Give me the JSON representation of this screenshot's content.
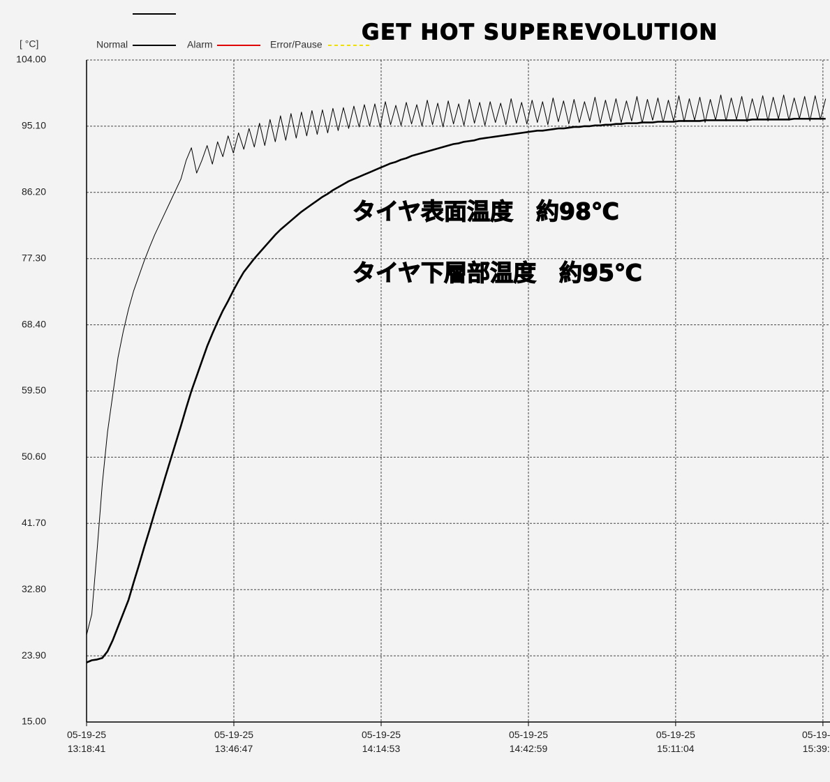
{
  "chart_data": {
    "type": "line",
    "title": "GET HOT SUPEREVOLUTION",
    "y_label": "[ °C]",
    "legend": [
      {
        "name": "Normal",
        "color": "#000000",
        "dash": false
      },
      {
        "name": "Alarm",
        "color": "#e00000",
        "dash": false
      },
      {
        "name": "Error/Pause",
        "color": "#f0e000",
        "dash": true
      }
    ],
    "annotations": [
      "タイヤ表面温度　約98℃",
      "タイヤ下層部温度　約95℃"
    ],
    "grid": true,
    "ylim": [
      15,
      104
    ],
    "yticks": [
      {
        "value": 15,
        "label": "15.00"
      },
      {
        "value": 23.9,
        "label": "23.90"
      },
      {
        "value": 32.8,
        "label": "32.80"
      },
      {
        "value": 41.7,
        "label": "41.70"
      },
      {
        "value": 50.6,
        "label": "50.60"
      },
      {
        "value": 59.5,
        "label": "59.50"
      },
      {
        "value": 68.4,
        "label": "68.40"
      },
      {
        "value": 77.3,
        "label": "77.30"
      },
      {
        "value": 86.2,
        "label": "86.20"
      },
      {
        "value": 95.1,
        "label": "95.10"
      },
      {
        "value": 104,
        "label": "104.00"
      }
    ],
    "xlim": [
      "2025-05-19T13:18:41",
      "2025-05-19T15:40:31"
    ],
    "xticks": [
      {
        "value": "2025-05-19T13:18:41",
        "label": "05-19-25\n13:18:41"
      },
      {
        "value": "2025-05-19T13:46:47",
        "label": "05-19-25\n13:46:47"
      },
      {
        "value": "2025-05-19T14:14:53",
        "label": "05-19-25\n14:14:53"
      },
      {
        "value": "2025-05-19T14:42:59",
        "label": "05-19-25\n14:42:59"
      },
      {
        "value": "2025-05-19T15:11:04",
        "label": "05-19-25\n15:11:04"
      },
      {
        "value": "2025-05-19T15:39:10",
        "label": "05-19-\n15:39:"
      }
    ],
    "x": [
      "2025-05-19T13:18:41",
      "2025-05-19T13:19:41",
      "2025-05-19T13:20:41",
      "2025-05-19T13:21:41",
      "2025-05-19T13:22:41",
      "2025-05-19T13:23:41",
      "2025-05-19T13:24:41",
      "2025-05-19T13:25:41",
      "2025-05-19T13:26:41",
      "2025-05-19T13:27:41",
      "2025-05-19T13:28:41",
      "2025-05-19T13:29:41",
      "2025-05-19T13:30:41",
      "2025-05-19T13:31:41",
      "2025-05-19T13:32:41",
      "2025-05-19T13:33:41",
      "2025-05-19T13:34:41",
      "2025-05-19T13:35:41",
      "2025-05-19T13:36:41",
      "2025-05-19T13:37:41",
      "2025-05-19T13:38:41",
      "2025-05-19T13:39:41",
      "2025-05-19T13:40:41",
      "2025-05-19T13:41:41",
      "2025-05-19T13:42:41",
      "2025-05-19T13:43:41",
      "2025-05-19T13:44:41",
      "2025-05-19T13:45:41",
      "2025-05-19T13:46:41",
      "2025-05-19T13:47:41",
      "2025-05-19T13:48:41",
      "2025-05-19T13:49:41",
      "2025-05-19T13:50:41",
      "2025-05-19T13:51:41",
      "2025-05-19T13:52:41",
      "2025-05-19T13:53:41",
      "2025-05-19T13:54:41",
      "2025-05-19T13:55:41",
      "2025-05-19T13:56:41",
      "2025-05-19T13:57:41",
      "2025-05-19T13:58:41",
      "2025-05-19T13:59:41",
      "2025-05-19T14:00:41",
      "2025-05-19T14:01:41",
      "2025-05-19T14:02:41",
      "2025-05-19T14:03:41",
      "2025-05-19T14:04:41",
      "2025-05-19T14:05:41",
      "2025-05-19T14:06:41",
      "2025-05-19T14:07:41",
      "2025-05-19T14:08:41",
      "2025-05-19T14:09:41",
      "2025-05-19T14:10:41",
      "2025-05-19T14:11:41",
      "2025-05-19T14:12:41",
      "2025-05-19T14:13:41",
      "2025-05-19T14:14:41",
      "2025-05-19T14:15:41",
      "2025-05-19T14:16:41",
      "2025-05-19T14:17:41",
      "2025-05-19T14:18:41",
      "2025-05-19T14:19:41",
      "2025-05-19T14:20:41",
      "2025-05-19T14:21:41",
      "2025-05-19T14:22:41",
      "2025-05-19T14:23:41",
      "2025-05-19T14:24:41",
      "2025-05-19T14:25:41",
      "2025-05-19T14:26:41",
      "2025-05-19T14:27:41",
      "2025-05-19T14:28:41",
      "2025-05-19T14:29:41",
      "2025-05-19T14:30:41",
      "2025-05-19T14:31:41",
      "2025-05-19T14:32:41",
      "2025-05-19T14:33:41",
      "2025-05-19T14:34:41",
      "2025-05-19T14:35:41",
      "2025-05-19T14:36:41",
      "2025-05-19T14:37:41",
      "2025-05-19T14:38:41",
      "2025-05-19T14:39:41",
      "2025-05-19T14:40:41",
      "2025-05-19T14:41:41",
      "2025-05-19T14:42:41",
      "2025-05-19T14:43:41",
      "2025-05-19T14:44:41",
      "2025-05-19T14:45:41",
      "2025-05-19T14:46:41",
      "2025-05-19T14:47:41",
      "2025-05-19T14:48:41",
      "2025-05-19T14:49:41",
      "2025-05-19T14:50:41",
      "2025-05-19T14:51:41",
      "2025-05-19T14:52:41",
      "2025-05-19T14:53:41",
      "2025-05-19T14:54:41",
      "2025-05-19T14:55:41",
      "2025-05-19T14:56:41",
      "2025-05-19T14:57:41",
      "2025-05-19T14:58:41",
      "2025-05-19T14:59:41",
      "2025-05-19T15:00:41",
      "2025-05-19T15:01:41",
      "2025-05-19T15:02:41",
      "2025-05-19T15:03:41",
      "2025-05-19T15:04:41",
      "2025-05-19T15:05:41",
      "2025-05-19T15:06:41",
      "2025-05-19T15:07:41",
      "2025-05-19T15:08:41",
      "2025-05-19T15:09:41",
      "2025-05-19T15:10:41",
      "2025-05-19T15:11:41",
      "2025-05-19T15:12:41",
      "2025-05-19T15:13:41",
      "2025-05-19T15:14:41",
      "2025-05-19T15:15:41",
      "2025-05-19T15:16:41",
      "2025-05-19T15:17:41",
      "2025-05-19T15:18:41",
      "2025-05-19T15:19:41",
      "2025-05-19T15:20:41",
      "2025-05-19T15:21:41",
      "2025-05-19T15:22:41",
      "2025-05-19T15:23:41",
      "2025-05-19T15:24:41",
      "2025-05-19T15:25:41",
      "2025-05-19T15:26:41",
      "2025-05-19T15:27:41",
      "2025-05-19T15:28:41",
      "2025-05-19T15:29:41",
      "2025-05-19T15:30:41",
      "2025-05-19T15:31:41",
      "2025-05-19T15:32:41",
      "2025-05-19T15:33:41",
      "2025-05-19T15:34:41",
      "2025-05-19T15:35:41",
      "2025-05-19T15:36:41",
      "2025-05-19T15:37:41",
      "2025-05-19T15:38:41",
      "2025-05-19T15:39:41"
    ],
    "series": [
      {
        "color": "#000000",
        "width": 1,
        "values": [
          26.7,
          29.5,
          38,
          47,
          54,
          59,
          64,
          67.5,
          70.5,
          73,
          75,
          77,
          78.8,
          80.5,
          82,
          83.5,
          85,
          86.5,
          88,
          90.5,
          92.2,
          88.8,
          90.5,
          92.5,
          90,
          93,
          91,
          93.8,
          91.5,
          94.2,
          92,
          94.8,
          92.3,
          95.5,
          92.5,
          96,
          93,
          96.5,
          93.2,
          96.8,
          93.5,
          97,
          93.8,
          97.2,
          94,
          97.3,
          94.2,
          97.5,
          94.5,
          97.6,
          94.8,
          97.8,
          95,
          98,
          95.1,
          98.1,
          95.0,
          98.4,
          95.3,
          97.9,
          95.2,
          98.3,
          95.4,
          98.0,
          95.1,
          98.6,
          95.3,
          98.2,
          95.0,
          98.5,
          95.4,
          98.1,
          95.2,
          98.7,
          95.5,
          98.3,
          95.2,
          98.4,
          95.6,
          98.2,
          95.3,
          98.8,
          95.5,
          98.3,
          95.4,
          98.6,
          95.6,
          98.4,
          95.3,
          98.9,
          95.7,
          98.5,
          95.4,
          98.7,
          95.6,
          98.4,
          95.8,
          99.0,
          95.5,
          98.6,
          95.7,
          98.8,
          95.6,
          98.5,
          95.8,
          99.1,
          95.5,
          98.7,
          95.9,
          98.9,
          95.6,
          98.6,
          95.8,
          99.2,
          95.7,
          98.8,
          95.9,
          99.0,
          95.6,
          98.7,
          95.9,
          99.3,
          95.8,
          98.9,
          96.0,
          99.1,
          95.7,
          98.8,
          96.0,
          99.2,
          95.8,
          99.0,
          96.1,
          99.3,
          95.9,
          98.9,
          96.1,
          99.1,
          95.8,
          99.2,
          96.0,
          98.8
        ]
      },
      {
        "color": "#000000",
        "width": 2.6,
        "values": [
          23.0,
          23.3,
          23.4,
          23.6,
          24.5,
          26,
          27.8,
          29.6,
          31.4,
          33.8,
          36.1,
          38.5,
          40.8,
          43.2,
          45.5,
          47.9,
          50.2,
          52.5,
          54.8,
          57.2,
          59.5,
          61.5,
          63.5,
          65.5,
          67.2,
          68.8,
          70.3,
          71.6,
          73,
          74.3,
          75.5,
          76.4,
          77.3,
          78.1,
          78.9,
          79.7,
          80.5,
          81.2,
          81.8,
          82.4,
          83,
          83.6,
          84.1,
          84.6,
          85.1,
          85.6,
          86,
          86.5,
          86.9,
          87.3,
          87.7,
          88,
          88.3,
          88.6,
          88.9,
          89.2,
          89.5,
          89.8,
          90.1,
          90.3,
          90.6,
          90.8,
          91.1,
          91.3,
          91.5,
          91.7,
          91.9,
          92.1,
          92.3,
          92.5,
          92.7,
          92.8,
          93,
          93.1,
          93.2,
          93.4,
          93.5,
          93.6,
          93.7,
          93.8,
          93.9,
          94,
          94.1,
          94.2,
          94.3,
          94.4,
          94.5,
          94.5,
          94.6,
          94.7,
          94.8,
          94.8,
          94.9,
          95,
          95,
          95.1,
          95.1,
          95.2,
          95.2,
          95.3,
          95.3,
          95.4,
          95.4,
          95.5,
          95.5,
          95.5,
          95.6,
          95.6,
          95.6,
          95.7,
          95.7,
          95.7,
          95.7,
          95.8,
          95.8,
          95.8,
          95.8,
          95.8,
          95.9,
          95.9,
          95.9,
          95.9,
          95.9,
          95.9,
          95.9,
          95.9,
          95.9,
          96.0,
          96.0,
          96.0,
          96.0,
          96.0,
          96.0,
          96.0,
          96.0,
          96.1,
          96.1,
          96.1,
          96.1,
          96.1,
          96.1,
          96.1
        ]
      }
    ]
  }
}
